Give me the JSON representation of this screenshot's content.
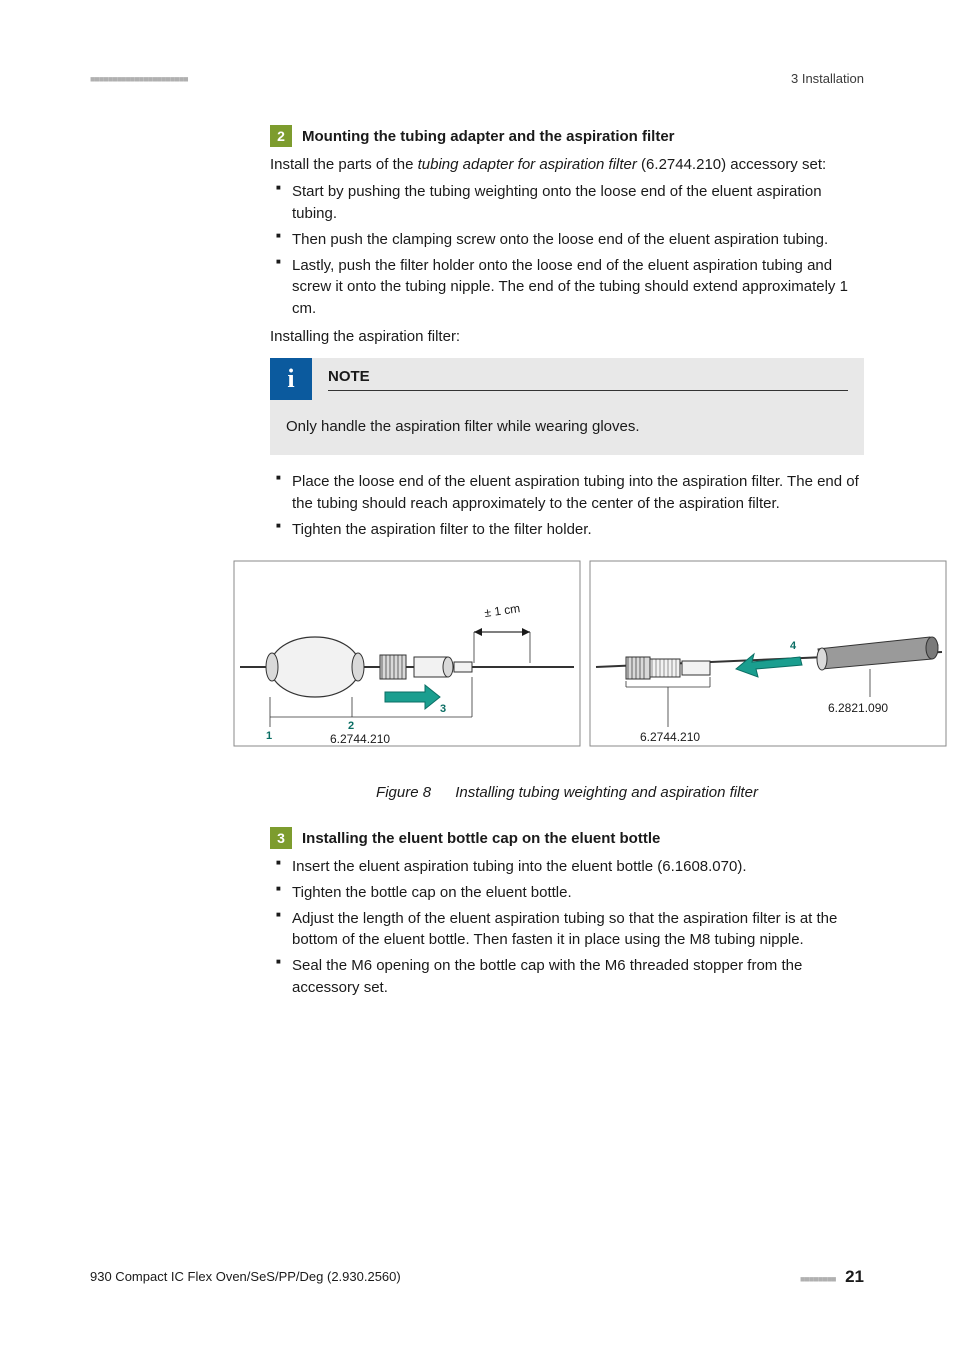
{
  "header": {
    "dashes": "■■■■■■■■■■■■■■■■■■■■■■",
    "section": "3 Installation"
  },
  "steps": [
    {
      "num": "2",
      "title": "Mounting the tubing adapter and the aspiration filter",
      "intro_pre": "Install the parts of the ",
      "intro_em": "tubing adapter for aspiration filter",
      "intro_post": " (6.2744.210) accessory set:",
      "bullets_a": [
        "Start by pushing the tubing weighting onto the loose end of the eluent aspiration tubing.",
        "Then push the clamping screw onto the loose end of the eluent aspiration tubing.",
        "Lastly, push the filter holder onto the loose end of the eluent aspiration tubing and screw it onto the tubing nipple.\nThe end of the tubing should extend approximately 1 cm."
      ],
      "mid": "Installing the aspiration filter:",
      "note_title": "NOTE",
      "note_body": "Only handle the aspiration filter while wearing gloves.",
      "bullets_b": [
        "Place the loose end of the eluent aspiration tubing into the aspiration filter.\nThe end of the tubing should reach approximately to the center of the aspiration filter.",
        "Tighten the aspiration filter to the filter holder."
      ]
    },
    {
      "num": "3",
      "title": "Installing the eluent bottle cap on the eluent bottle",
      "bullets": [
        "Insert the eluent aspiration tubing into the eluent bottle (6.1608.070).",
        "Tighten the bottle cap on the eluent bottle.",
        "Adjust the length of the eluent aspiration tubing so that the aspiration filter is at the bottom of the eluent bottle. Then fasten it in place using the M8 tubing nipple.",
        "Seal the M6 opening on the bottle cap with the M6 threaded stopper from the accessory set."
      ]
    }
  ],
  "figure": {
    "label": "Figure 8",
    "caption": "Installing tubing weighting and aspiration filter",
    "left": {
      "part_no": "6.2744.210",
      "dim": "± 1 cm",
      "callouts": [
        "1",
        "2",
        "3"
      ]
    },
    "right": {
      "part_no_left": "6.2744.210",
      "part_no_right": "6.2821.090",
      "callout": "4"
    },
    "colors": {
      "frame": "#8a8a8a",
      "line": "#333333",
      "fill_light": "#f2f2f2",
      "fill_mid": "#d9d9d9",
      "fill_dark": "#9a9a9a",
      "arrow": "#1a9e8f",
      "arrow_dark": "#0b6e64",
      "text": "#1a1a1a"
    }
  },
  "footer": {
    "doc": "930 Compact IC Flex Oven/SeS/PP/Deg (2.930.2560)",
    "dashes": "■■■■■■■■",
    "page": "21"
  }
}
